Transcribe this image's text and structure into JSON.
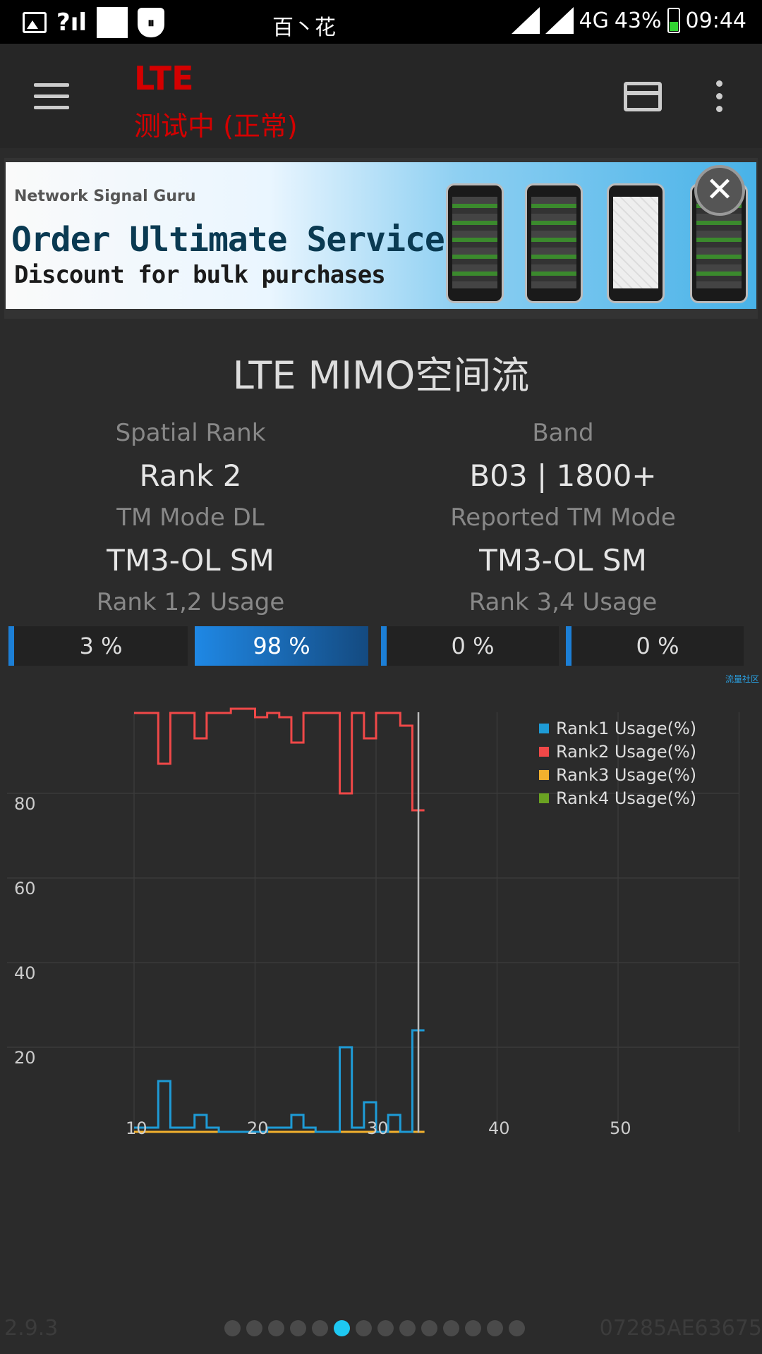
{
  "status_bar": {
    "center_text": "百丶花",
    "network_label": "4G",
    "battery_percent": "43%",
    "time": "09:44",
    "icons": [
      "image-icon",
      "no-sim-signal-icon",
      "white-square-icon",
      "shield-icon",
      "signal-icon",
      "signal-icon",
      "battery-charging-icon"
    ]
  },
  "toolbar": {
    "title": "LTE",
    "subtitle": "测试中 (正常)",
    "title_color": "#d40000"
  },
  "ad": {
    "brand": "Network Signal Guru",
    "headline": "Order Ultimate Service",
    "subline": "Discount for bulk purchases",
    "close_label": "✕"
  },
  "page": {
    "title": "LTE MIMO空间流",
    "spatial_rank_label": "Spatial Rank",
    "spatial_rank_value": "Rank 2",
    "band_label": "Band",
    "band_value": "B03 | 1800+",
    "tm_mode_dl_label": "TM Mode DL",
    "tm_mode_dl_value": "TM3-OL SM",
    "reported_tm_label": "Reported TM Mode",
    "reported_tm_value": "TM3-OL SM",
    "rank12_usage_label": "Rank 1,2 Usage",
    "rank34_usage_label": "Rank 3,4 Usage",
    "usage_bars": [
      "3 %",
      "98 %",
      "0 %",
      "0 %"
    ],
    "watermark": "流量社区"
  },
  "chart_data": {
    "type": "line",
    "x_ticks": [
      "10",
      "20",
      "30",
      "40",
      "50"
    ],
    "y_ticks": [
      "80",
      "60",
      "40",
      "20"
    ],
    "xlim": [
      10,
      60
    ],
    "ylim": [
      0,
      100
    ],
    "cursor_x": 33.5,
    "grid": true,
    "legend_position": "top-right",
    "series": [
      {
        "name": "Rank1 Usage(%)",
        "color": "#1e9bd6",
        "x": [
          10,
          11,
          12,
          13,
          14,
          15,
          16,
          17,
          18,
          19,
          20,
          21,
          22,
          23,
          24,
          25,
          26,
          27,
          28,
          29,
          30,
          31,
          32,
          33
        ],
        "y": [
          1,
          1,
          12,
          1,
          1,
          4,
          1,
          0,
          0,
          0,
          0,
          1,
          1,
          4,
          1,
          0,
          0,
          20,
          1,
          7,
          0,
          4,
          0,
          24
        ]
      },
      {
        "name": "Rank2 Usage(%)",
        "color": "#f04848",
        "x": [
          10,
          11,
          12,
          13,
          14,
          15,
          16,
          17,
          18,
          19,
          20,
          21,
          22,
          23,
          24,
          25,
          26,
          27,
          28,
          29,
          30,
          31,
          32,
          33
        ],
        "y": [
          99,
          99,
          87,
          99,
          99,
          93,
          99,
          99,
          100,
          100,
          98,
          99,
          98,
          92,
          99,
          99,
          99,
          80,
          99,
          93,
          99,
          99,
          96,
          76
        ]
      },
      {
        "name": "Rank3 Usage(%)",
        "color": "#f2b02e",
        "x": [
          10,
          33
        ],
        "y": [
          0,
          0
        ]
      },
      {
        "name": "Rank4 Usage(%)",
        "color": "#6aa222",
        "x": [
          10,
          33
        ],
        "y": [
          0,
          0
        ]
      }
    ]
  },
  "footer": {
    "version": "2.9.3",
    "device_id": "07285AE63675",
    "page_count": 14,
    "active_page": 5
  }
}
